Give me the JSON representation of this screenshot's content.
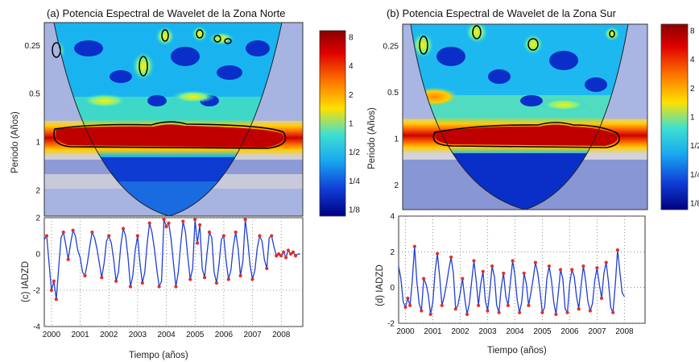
{
  "chart_data": [
    {
      "type": "heatmap",
      "panel": "a",
      "title": "(a) Potencia Espectral de Wavelet de la Zona Norte",
      "ylabel": "Periodo (Años)",
      "yticks": [
        "0.25",
        "0.5",
        "1",
        "2"
      ],
      "colorbar_ticks": [
        "8",
        "4",
        "2",
        "1",
        "1/2",
        "1/4",
        "1/8"
      ],
      "x_range": [
        1999.75,
        2008.75
      ],
      "y_scale": "log2",
      "y_range": [
        0.18,
        2.9
      ],
      "hotspots": [
        {
          "x": 2000.3,
          "period": 0.25,
          "power": 8
        },
        {
          "x": 2001.4,
          "period": 0.5,
          "power": 2
        },
        {
          "x": 2002.5,
          "period": 0.5,
          "power": 2
        },
        {
          "x": 2003.2,
          "period": 0.28,
          "power": 8
        },
        {
          "x": 2004.0,
          "period": 0.21,
          "power": 8
        },
        {
          "x": 2005.2,
          "period": 0.21,
          "power": 8
        },
        {
          "x": 2005.7,
          "period": 0.22,
          "power": 8
        }
      ],
      "band": {
        "x_start": 2000.2,
        "x_end": 2008.2,
        "period": 1.0,
        "power": 8
      }
    },
    {
      "type": "heatmap",
      "panel": "b",
      "title": "(b) Potencia Espectral de Wavelet de la Zona Sur",
      "ylabel": "Periodo (Años)",
      "yticks": [
        "0.25",
        "0.5",
        "1",
        "2"
      ],
      "colorbar_ticks": [
        "8",
        "4",
        "2",
        "1",
        "1/2",
        "1/4",
        "1/8"
      ],
      "x_range": [
        1999.75,
        2008.75
      ],
      "y_scale": "log2",
      "y_range": [
        0.18,
        2.9
      ],
      "hotspots": [
        {
          "x": 2000.5,
          "period": 0.24,
          "power": 8
        },
        {
          "x": 2002.5,
          "period": 0.19,
          "power": 8
        },
        {
          "x": 2004.5,
          "period": 0.23,
          "power": 8
        },
        {
          "x": 2007.5,
          "period": 0.2,
          "power": 8
        },
        {
          "x": 2001.0,
          "period": 0.5,
          "power": 4
        }
      ],
      "band": {
        "x_start": 2000.9,
        "x_end": 2007.8,
        "period": 1.0,
        "power": 8
      }
    },
    {
      "type": "line",
      "panel": "c",
      "ylabel": "(c) IADZD",
      "xlabel": "Tiempo (años)",
      "ylim": [
        -4,
        2
      ],
      "yticks": [
        "2",
        "0",
        "-2",
        "-4"
      ],
      "xticks": [
        "2000",
        "2001",
        "2002",
        "2003",
        "2004",
        "2005",
        "2006",
        "2007",
        "2008"
      ],
      "grid": true,
      "series": [
        {
          "x_start": 1999.75,
          "x_step": 0.0833,
          "values": [
            0.8,
            1.0,
            -0.5,
            -2.0,
            -1.5,
            -2.5,
            -0.8,
            0.9,
            1.2,
            0.5,
            -0.3,
            0.6,
            1.3,
            1.0,
            0.2,
            -0.2,
            -1.0,
            -1.2,
            -0.5,
            0.4,
            1.2,
            0.9,
            0.3,
            -0.5,
            -1.3,
            -0.5,
            0.7,
            1.0,
            0.6,
            -0.3,
            -1.5,
            -1.0,
            0.5,
            1.4,
            1.0,
            -0.2,
            -1.8,
            -1.2,
            0.2,
            1.0,
            -0.5,
            -1.6,
            -1.0,
            0.6,
            1.7,
            1.2,
            0.3,
            -0.8,
            -1.8,
            -1.5,
            1.9,
            1.5,
            1.7,
            0.8,
            -0.5,
            -1.8,
            -1.0,
            0.5,
            1.8,
            1.2,
            -0.2,
            -1.4,
            -0.8,
            1.9,
            0.6,
            1.6,
            -0.8,
            -1.3,
            0.0,
            1.2,
            0.9,
            -1.0,
            -1.6,
            -0.6,
            0.8,
            1.0,
            -0.4,
            -1.4,
            -0.9,
            0.4,
            1.2,
            0.3,
            -1.2,
            -0.4,
            1.9,
            0.8,
            -0.6,
            -1.4,
            -0.9,
            0.3,
            1.0,
            0.7,
            -0.3,
            -0.8,
            0.9,
            1.0,
            0.4,
            -0.1,
            0.0,
            -0.1,
            0.1,
            -0.2,
            0.2,
            0.0,
            0.1,
            -0.1,
            0.0,
            0.0
          ]
        }
      ]
    },
    {
      "type": "line",
      "panel": "d",
      "ylabel": "(d) IADZD",
      "xlabel": "Tiempo (años)",
      "ylim": [
        -2,
        4
      ],
      "yticks": [
        "4",
        "2",
        "0",
        "-2"
      ],
      "xticks": [
        "2000",
        "2001",
        "2002",
        "2003",
        "2004",
        "2005",
        "2006",
        "2007",
        "2008"
      ],
      "grid": true,
      "series": [
        {
          "x_start": 1999.75,
          "x_step": 0.0833,
          "values": [
            1.2,
            0.5,
            -0.8,
            -1.1,
            -0.6,
            -1.0,
            0.4,
            2.3,
            0.3,
            -0.9,
            -1.3,
            0.5,
            0.2,
            -0.4,
            -1.5,
            -0.8,
            0.9,
            1.9,
            0.6,
            -1.0,
            -0.5,
            0.2,
            1.0,
            1.7,
            0.8,
            -1.2,
            -1.0,
            -0.3,
            0.5,
            -0.6,
            -1.5,
            -0.9,
            0.3,
            1.5,
            0.4,
            -1.0,
            0.2,
            0.9,
            -0.7,
            -1.3,
            -0.2,
            1.2,
            0.6,
            -1.0,
            -1.4,
            0.0,
            0.8,
            -0.5,
            -1.0,
            0.3,
            1.5,
            0.7,
            -0.7,
            -1.4,
            -0.8,
            0.8,
            0.2,
            -1.0,
            -0.3,
            0.5,
            1.4,
            0.8,
            -0.2,
            -1.4,
            -1.1,
            0.5,
            1.2,
            0.4,
            -0.8,
            -1.5,
            -0.3,
            1.0,
            0.5,
            -1.2,
            -1.4,
            0.2,
            1.0,
            0.6,
            -0.5,
            -1.2,
            0.1,
            1.2,
            0.4,
            -0.8,
            -1.3,
            -0.9,
            0.4,
            1.1,
            0.2,
            -0.6,
            0.8,
            1.4,
            0.3,
            -1.1,
            -1.4,
            0.2,
            2.1,
            0.9,
            -0.3,
            -0.5
          ]
        }
      ]
    }
  ],
  "colors": {
    "line": "#1f3fd6",
    "marker": "#e0302a",
    "contour": "#000000"
  }
}
